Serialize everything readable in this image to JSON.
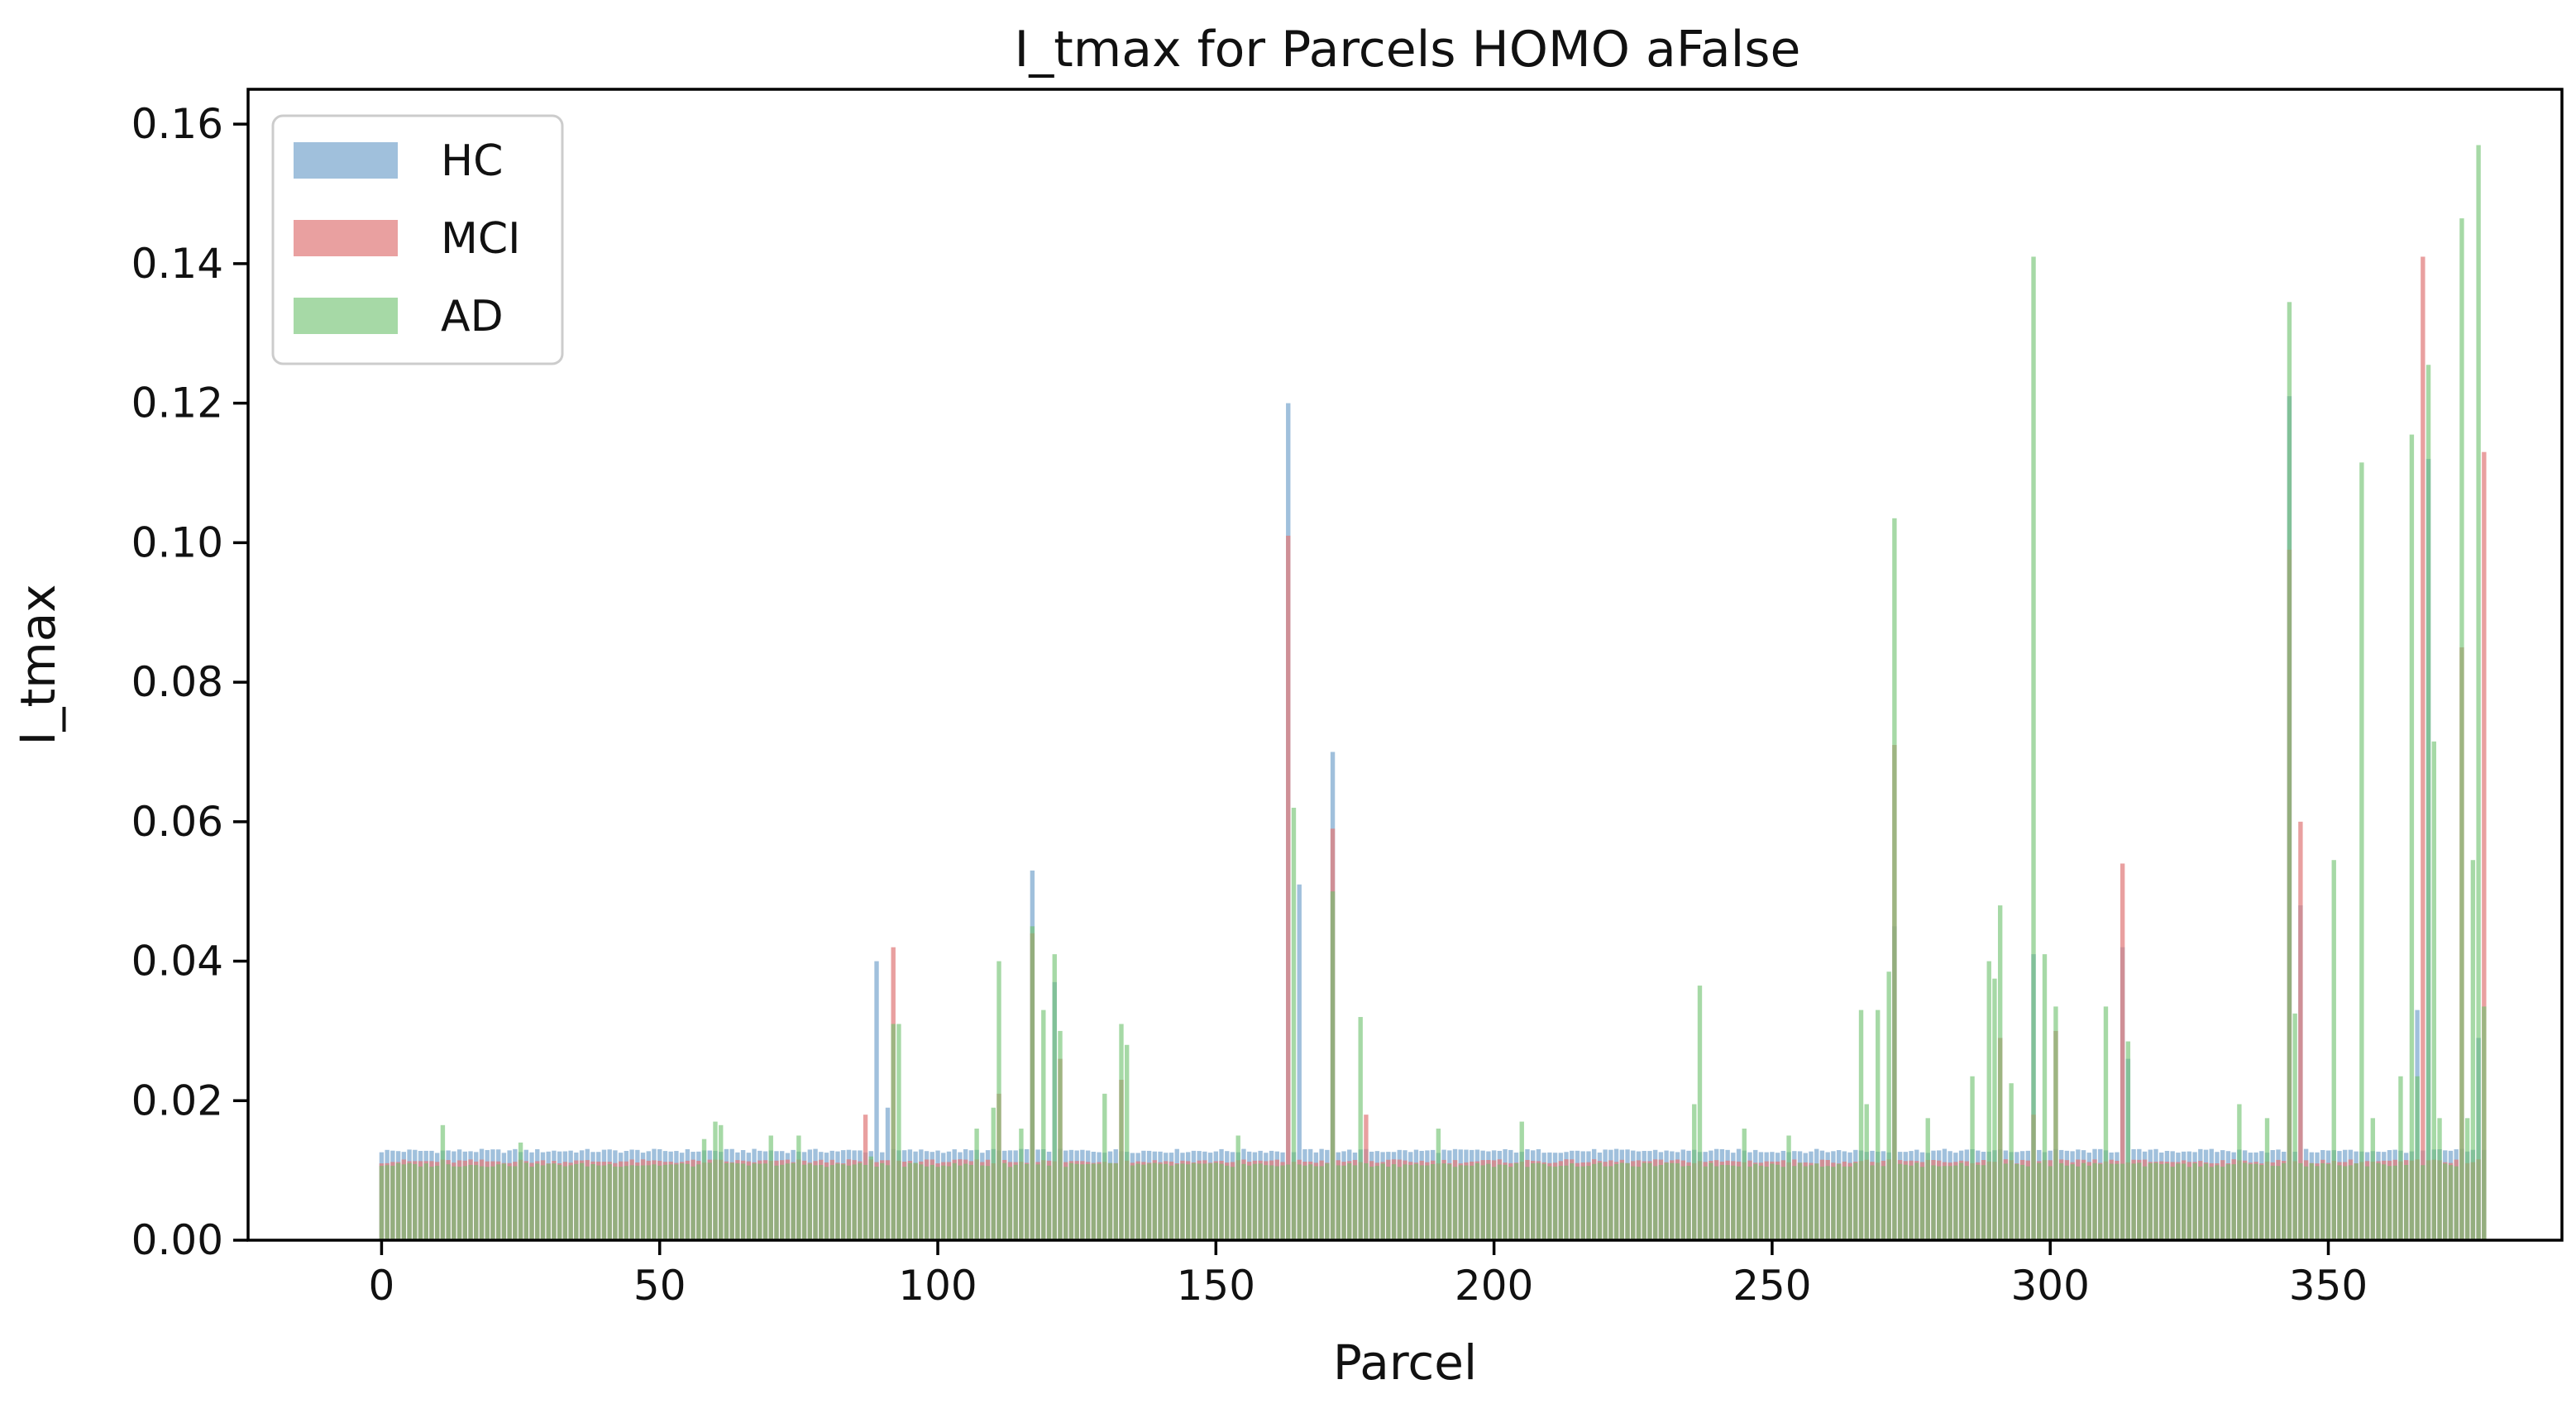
{
  "chart_data": {
    "type": "bar",
    "title": "I_tmax for Parcels HOMO aFalse",
    "xlabel": "Parcel",
    "ylabel": "I_tmax",
    "xlim": [
      -24,
      392
    ],
    "ylim": [
      0,
      0.165
    ],
    "x_ticks": [
      0,
      50,
      100,
      150,
      200,
      250,
      300,
      350
    ],
    "x_tick_labels": [
      "0",
      "50",
      "100",
      "150",
      "200",
      "250",
      "300",
      "350"
    ],
    "y_ticks": [
      0,
      0.02,
      0.04,
      0.06,
      0.08,
      0.1,
      0.12,
      0.14,
      0.16
    ],
    "y_tick_labels": [
      "0.00",
      "0.02",
      "0.04",
      "0.06",
      "0.08",
      "0.10",
      "0.12",
      "0.14",
      "0.16"
    ],
    "legend_position": "top-left",
    "grid": false,
    "n_parcels": 379,
    "baseline": {
      "HC": 0.0128,
      "MCI": 0.0113,
      "AD": 0.0108
    },
    "series": [
      {
        "name": "HC",
        "color": "#7ba7cf",
        "opacity": 0.72,
        "peaks": [
          [
            89,
            0.04
          ],
          [
            91,
            0.019
          ],
          [
            117,
            0.053
          ],
          [
            121,
            0.037
          ],
          [
            163,
            0.12
          ],
          [
            165,
            0.051
          ],
          [
            171,
            0.07
          ],
          [
            272,
            0.045
          ],
          [
            297,
            0.041
          ],
          [
            313,
            0.042
          ],
          [
            314,
            0.026
          ],
          [
            343,
            0.121
          ],
          [
            345,
            0.048
          ],
          [
            366,
            0.033
          ],
          [
            368,
            0.112
          ],
          [
            377,
            0.029
          ]
        ]
      },
      {
        "name": "MCI",
        "color": "#e07b7b",
        "opacity": 0.72,
        "peaks": [
          [
            87,
            0.018
          ],
          [
            92,
            0.042
          ],
          [
            111,
            0.021
          ],
          [
            117,
            0.044
          ],
          [
            122,
            0.026
          ],
          [
            133,
            0.023
          ],
          [
            163,
            0.101
          ],
          [
            171,
            0.059
          ],
          [
            177,
            0.018
          ],
          [
            272,
            0.071
          ],
          [
            291,
            0.029
          ],
          [
            297,
            0.018
          ],
          [
            301,
            0.03
          ],
          [
            313,
            0.054
          ],
          [
            343,
            0.099
          ],
          [
            345,
            0.06
          ],
          [
            367,
            0.141
          ],
          [
            374,
            0.085
          ],
          [
            378,
            0.113
          ]
        ]
      },
      {
        "name": "AD",
        "color": "#6fc16f",
        "opacity": 0.62,
        "peaks": [
          [
            11,
            0.0165
          ],
          [
            25,
            0.014
          ],
          [
            58,
            0.0145
          ],
          [
            60,
            0.017
          ],
          [
            61,
            0.0165
          ],
          [
            70,
            0.015
          ],
          [
            75,
            0.015
          ],
          [
            88,
            0.012
          ],
          [
            92,
            0.031
          ],
          [
            93,
            0.031
          ],
          [
            107,
            0.016
          ],
          [
            110,
            0.019
          ],
          [
            111,
            0.04
          ],
          [
            115,
            0.016
          ],
          [
            117,
            0.045
          ],
          [
            119,
            0.033
          ],
          [
            121,
            0.041
          ],
          [
            122,
            0.03
          ],
          [
            130,
            0.021
          ],
          [
            133,
            0.031
          ],
          [
            134,
            0.028
          ],
          [
            154,
            0.015
          ],
          [
            164,
            0.062
          ],
          [
            171,
            0.05
          ],
          [
            176,
            0.032
          ],
          [
            190,
            0.016
          ],
          [
            205,
            0.017
          ],
          [
            236,
            0.0195
          ],
          [
            237,
            0.0365
          ],
          [
            245,
            0.016
          ],
          [
            253,
            0.015
          ],
          [
            266,
            0.033
          ],
          [
            267,
            0.0195
          ],
          [
            269,
            0.033
          ],
          [
            271,
            0.0385
          ],
          [
            272,
            0.1035
          ],
          [
            278,
            0.0175
          ],
          [
            286,
            0.0235
          ],
          [
            289,
            0.04
          ],
          [
            290,
            0.0375
          ],
          [
            291,
            0.048
          ],
          [
            293,
            0.0225
          ],
          [
            297,
            0.141
          ],
          [
            299,
            0.041
          ],
          [
            301,
            0.0335
          ],
          [
            310,
            0.0335
          ],
          [
            314,
            0.0285
          ],
          [
            334,
            0.0195
          ],
          [
            339,
            0.0175
          ],
          [
            343,
            0.1345
          ],
          [
            344,
            0.0325
          ],
          [
            351,
            0.0545
          ],
          [
            356,
            0.1115
          ],
          [
            358,
            0.0175
          ],
          [
            363,
            0.0235
          ],
          [
            365,
            0.1155
          ],
          [
            366,
            0.0235
          ],
          [
            368,
            0.1255
          ],
          [
            369,
            0.0715
          ],
          [
            370,
            0.0175
          ],
          [
            374,
            0.1465
          ],
          [
            375,
            0.0175
          ],
          [
            376,
            0.0545
          ],
          [
            377,
            0.157
          ],
          [
            378,
            0.0335
          ]
        ]
      }
    ]
  }
}
